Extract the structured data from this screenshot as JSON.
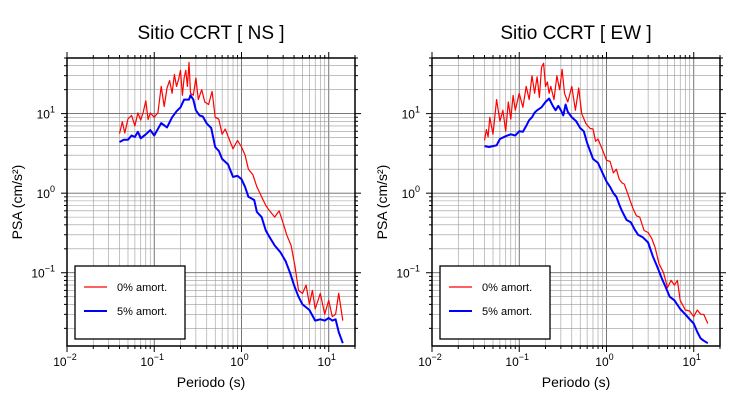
{
  "chart_data": [
    {
      "type": "line",
      "title": "Sitio CCRT [ NS ]",
      "xlabel": "Periodo (s)",
      "ylabel": "PSA (cm/s²)",
      "xscale": "log",
      "yscale": "log",
      "xlim": [
        0.01,
        20
      ],
      "ylim": [
        0.012,
        50
      ],
      "grid": true,
      "xticks": [
        {
          "value": 0.01,
          "base": "10",
          "exp": "−2"
        },
        {
          "value": 0.1,
          "base": "10",
          "exp": "−1"
        },
        {
          "value": 1,
          "base": "10",
          "exp": "0"
        },
        {
          "value": 10,
          "base": "10",
          "exp": "1"
        }
      ],
      "yticks": [
        {
          "value": 0.1,
          "base": "10",
          "exp": "−1"
        },
        {
          "value": 1,
          "base": "10",
          "exp": "0"
        },
        {
          "value": 10,
          "base": "10",
          "exp": "1"
        }
      ],
      "legend_position": "bottom-left",
      "series": [
        {
          "name": "0% amort.",
          "color": "#ff0000",
          "width": 1.2,
          "points": [
            [
              0.04,
              5.6
            ],
            [
              0.043,
              7.9
            ],
            [
              0.046,
              5.7
            ],
            [
              0.05,
              8.6
            ],
            [
              0.055,
              9.5
            ],
            [
              0.06,
              7.0
            ],
            [
              0.065,
              10.2
            ],
            [
              0.07,
              8.3
            ],
            [
              0.075,
              10.5
            ],
            [
              0.08,
              14.5
            ],
            [
              0.085,
              8.4
            ],
            [
              0.09,
              10.2
            ],
            [
              0.1,
              9.0
            ],
            [
              0.11,
              10.2
            ],
            [
              0.12,
              22.0
            ],
            [
              0.13,
              12.3
            ],
            [
              0.14,
              21.0
            ],
            [
              0.15,
              26.0
            ],
            [
              0.16,
              18.0
            ],
            [
              0.17,
              31.0
            ],
            [
              0.18,
              22.0
            ],
            [
              0.19,
              27.0
            ],
            [
              0.2,
              35.0
            ],
            [
              0.21,
              17.0
            ],
            [
              0.22,
              28.0
            ],
            [
              0.23,
              35.0
            ],
            [
              0.24,
              22.0
            ],
            [
              0.25,
              44.0
            ],
            [
              0.26,
              18.0
            ],
            [
              0.28,
              17.0
            ],
            [
              0.3,
              28.0
            ],
            [
              0.32,
              15.0
            ],
            [
              0.35,
              20.0
            ],
            [
              0.38,
              14.0
            ],
            [
              0.42,
              13.0
            ],
            [
              0.46,
              19.0
            ],
            [
              0.5,
              9.0
            ],
            [
              0.55,
              8.5
            ],
            [
              0.6,
              5.5
            ],
            [
              0.65,
              6.4
            ],
            [
              0.7,
              5.2
            ],
            [
              0.8,
              3.6
            ],
            [
              0.9,
              4.6
            ],
            [
              1.0,
              3.8
            ],
            [
              1.1,
              3.0
            ],
            [
              1.2,
              2.0
            ],
            [
              1.35,
              1.7
            ],
            [
              1.5,
              1.2
            ],
            [
              1.7,
              0.9
            ],
            [
              1.9,
              0.7
            ],
            [
              2.1,
              0.6
            ],
            [
              2.4,
              0.5
            ],
            [
              2.7,
              0.6
            ],
            [
              3.0,
              0.42
            ],
            [
              3.3,
              0.3
            ],
            [
              3.7,
              0.22
            ],
            [
              4.1,
              0.12
            ],
            [
              4.5,
              0.06
            ],
            [
              5.0,
              0.055
            ],
            [
              5.5,
              0.07
            ],
            [
              6.0,
              0.04
            ],
            [
              6.5,
              0.06
            ],
            [
              7.0,
              0.035
            ],
            [
              8.0,
              0.055
            ],
            [
              9.0,
              0.03
            ],
            [
              10.0,
              0.045
            ],
            [
              11.0,
              0.028
            ],
            [
              12.0,
              0.03
            ],
            [
              13.0,
              0.055
            ],
            [
              14.5,
              0.025
            ]
          ]
        },
        {
          "name": "5% amort.",
          "color": "#0000ff",
          "width": 2,
          "points": [
            [
              0.04,
              4.4
            ],
            [
              0.045,
              4.7
            ],
            [
              0.05,
              4.7
            ],
            [
              0.055,
              5.3
            ],
            [
              0.06,
              5.1
            ],
            [
              0.065,
              5.9
            ],
            [
              0.07,
              4.9
            ],
            [
              0.08,
              5.5
            ],
            [
              0.09,
              6.2
            ],
            [
              0.1,
              5.3
            ],
            [
              0.12,
              7.6
            ],
            [
              0.14,
              6.7
            ],
            [
              0.16,
              9.0
            ],
            [
              0.18,
              10.7
            ],
            [
              0.2,
              12.0
            ],
            [
              0.22,
              15.0
            ],
            [
              0.25,
              15.0
            ],
            [
              0.26,
              17.0
            ],
            [
              0.28,
              15.0
            ],
            [
              0.3,
              11.0
            ],
            [
              0.33,
              9.5
            ],
            [
              0.36,
              9.2
            ],
            [
              0.4,
              7.5
            ],
            [
              0.45,
              6.6
            ],
            [
              0.5,
              3.8
            ],
            [
              0.55,
              3.4
            ],
            [
              0.6,
              2.7
            ],
            [
              0.7,
              2.3
            ],
            [
              0.8,
              1.6
            ],
            [
              0.9,
              1.65
            ],
            [
              1.0,
              1.5
            ],
            [
              1.1,
              1.2
            ],
            [
              1.2,
              0.9
            ],
            [
              1.4,
              0.82
            ],
            [
              1.5,
              0.58
            ],
            [
              1.7,
              0.5
            ],
            [
              1.9,
              0.34
            ],
            [
              2.1,
              0.28
            ],
            [
              2.4,
              0.22
            ],
            [
              2.8,
              0.18
            ],
            [
              3.2,
              0.14
            ],
            [
              3.6,
              0.1
            ],
            [
              4.0,
              0.07
            ],
            [
              4.5,
              0.05
            ],
            [
              5.0,
              0.04
            ],
            [
              6.0,
              0.034
            ],
            [
              7.0,
              0.025
            ],
            [
              8.0,
              0.026
            ],
            [
              9.0,
              0.025
            ],
            [
              10.0,
              0.027
            ],
            [
              11.0,
              0.025
            ],
            [
              12.0,
              0.026
            ],
            [
              13.0,
              0.018
            ],
            [
              14.5,
              0.013
            ]
          ]
        }
      ]
    },
    {
      "type": "line",
      "title": "Sitio CCRT [ EW ]",
      "xlabel": "Periodo (s)",
      "ylabel": "PSA (cm/s²)",
      "xscale": "log",
      "yscale": "log",
      "xlim": [
        0.01,
        20
      ],
      "ylim": [
        0.012,
        50
      ],
      "grid": true,
      "xticks": [
        {
          "value": 0.01,
          "base": "10",
          "exp": "−2"
        },
        {
          "value": 0.1,
          "base": "10",
          "exp": "−1"
        },
        {
          "value": 1,
          "base": "10",
          "exp": "0"
        },
        {
          "value": 10,
          "base": "10",
          "exp": "1"
        }
      ],
      "yticks": [
        {
          "value": 0.1,
          "base": "10",
          "exp": "−1"
        },
        {
          "value": 1,
          "base": "10",
          "exp": "0"
        },
        {
          "value": 10,
          "base": "10",
          "exp": "1"
        }
      ],
      "legend_position": "bottom-left",
      "series": [
        {
          "name": "0% amort.",
          "color": "#ff0000",
          "width": 1.2,
          "points": [
            [
              0.04,
              4.6
            ],
            [
              0.042,
              6.3
            ],
            [
              0.044,
              5.1
            ],
            [
              0.046,
              9.0
            ],
            [
              0.05,
              5.5
            ],
            [
              0.055,
              15.0
            ],
            [
              0.06,
              8.0
            ],
            [
              0.065,
              11.0
            ],
            [
              0.07,
              6.0
            ],
            [
              0.075,
              14.0
            ],
            [
              0.08,
              8.5
            ],
            [
              0.085,
              17.0
            ],
            [
              0.09,
              11.0
            ],
            [
              0.1,
              18.0
            ],
            [
              0.11,
              12.0
            ],
            [
              0.12,
              22.0
            ],
            [
              0.13,
              15.0
            ],
            [
              0.14,
              30.0
            ],
            [
              0.15,
              18.0
            ],
            [
              0.16,
              29.0
            ],
            [
              0.17,
              16.0
            ],
            [
              0.18,
              38.0
            ],
            [
              0.19,
              43.0
            ],
            [
              0.2,
              22.0
            ],
            [
              0.21,
              25.0
            ],
            [
              0.22,
              18.0
            ],
            [
              0.23,
              22.0
            ],
            [
              0.25,
              15.0
            ],
            [
              0.27,
              30.0
            ],
            [
              0.29,
              20.0
            ],
            [
              0.31,
              36.0
            ],
            [
              0.33,
              18.0
            ],
            [
              0.36,
              14.0
            ],
            [
              0.4,
              22.0
            ],
            [
              0.44,
              11.0
            ],
            [
              0.48,
              21.0
            ],
            [
              0.52,
              10.0
            ],
            [
              0.58,
              7.5
            ],
            [
              0.65,
              6.5
            ],
            [
              0.7,
              6.4
            ],
            [
              0.75,
              4.5
            ],
            [
              0.8,
              4.8
            ],
            [
              0.9,
              3.5
            ],
            [
              1.0,
              2.6
            ],
            [
              1.1,
              2.5
            ],
            [
              1.2,
              1.8
            ],
            [
              1.3,
              2.0
            ],
            [
              1.4,
              1.5
            ],
            [
              1.5,
              1.35
            ],
            [
              1.6,
              1.3
            ],
            [
              1.8,
              0.9
            ],
            [
              2.0,
              0.65
            ],
            [
              2.2,
              0.52
            ],
            [
              2.4,
              0.5
            ],
            [
              2.7,
              0.34
            ],
            [
              3.0,
              0.32
            ],
            [
              3.3,
              0.27
            ],
            [
              3.6,
              0.21
            ],
            [
              4.0,
              0.13
            ],
            [
              4.5,
              0.1
            ],
            [
              5.0,
              0.065
            ],
            [
              5.5,
              0.08
            ],
            [
              6.0,
              0.07
            ],
            [
              6.5,
              0.08
            ],
            [
              7.0,
              0.045
            ],
            [
              8.0,
              0.034
            ],
            [
              9.0,
              0.033
            ],
            [
              10.0,
              0.028
            ],
            [
              11.0,
              0.034
            ],
            [
              12.0,
              0.03
            ],
            [
              13.0,
              0.03
            ],
            [
              14.5,
              0.023
            ]
          ]
        },
        {
          "name": "5% amort.",
          "color": "#0000ff",
          "width": 2,
          "points": [
            [
              0.04,
              3.9
            ],
            [
              0.045,
              3.8
            ],
            [
              0.05,
              3.9
            ],
            [
              0.055,
              4.0
            ],
            [
              0.06,
              4.8
            ],
            [
              0.07,
              5.2
            ],
            [
              0.08,
              5.5
            ],
            [
              0.09,
              5.3
            ],
            [
              0.1,
              6.0
            ],
            [
              0.11,
              5.9
            ],
            [
              0.12,
              7.0
            ],
            [
              0.13,
              8.3
            ],
            [
              0.14,
              9.0
            ],
            [
              0.15,
              10.3
            ],
            [
              0.16,
              11.0
            ],
            [
              0.18,
              12.0
            ],
            [
              0.2,
              14.0
            ],
            [
              0.22,
              15.5
            ],
            [
              0.24,
              12.8
            ],
            [
              0.26,
              11.0
            ],
            [
              0.28,
              12.5
            ],
            [
              0.3,
              11.0
            ],
            [
              0.32,
              9.5
            ],
            [
              0.34,
              13.0
            ],
            [
              0.36,
              10.5
            ],
            [
              0.4,
              9.0
            ],
            [
              0.45,
              8.0
            ],
            [
              0.5,
              6.6
            ],
            [
              0.55,
              6.0
            ],
            [
              0.6,
              4.3
            ],
            [
              0.7,
              2.7
            ],
            [
              0.8,
              2.4
            ],
            [
              0.9,
              1.8
            ],
            [
              1.0,
              1.4
            ],
            [
              1.1,
              1.2
            ],
            [
              1.2,
              1.0
            ],
            [
              1.3,
              0.9
            ],
            [
              1.4,
              0.72
            ],
            [
              1.5,
              0.6
            ],
            [
              1.7,
              0.46
            ],
            [
              1.9,
              0.43
            ],
            [
              2.1,
              0.35
            ],
            [
              2.3,
              0.3
            ],
            [
              2.6,
              0.28
            ],
            [
              3.0,
              0.24
            ],
            [
              3.4,
              0.16
            ],
            [
              3.8,
              0.12
            ],
            [
              4.3,
              0.085
            ],
            [
              4.8,
              0.065
            ],
            [
              5.3,
              0.05
            ],
            [
              6.0,
              0.045
            ],
            [
              7.0,
              0.035
            ],
            [
              8.0,
              0.03
            ],
            [
              9.0,
              0.026
            ],
            [
              10.0,
              0.023
            ],
            [
              11.0,
              0.018
            ],
            [
              12.0,
              0.015
            ],
            [
              13.0,
              0.014
            ],
            [
              14.5,
              0.013
            ]
          ]
        }
      ]
    }
  ]
}
